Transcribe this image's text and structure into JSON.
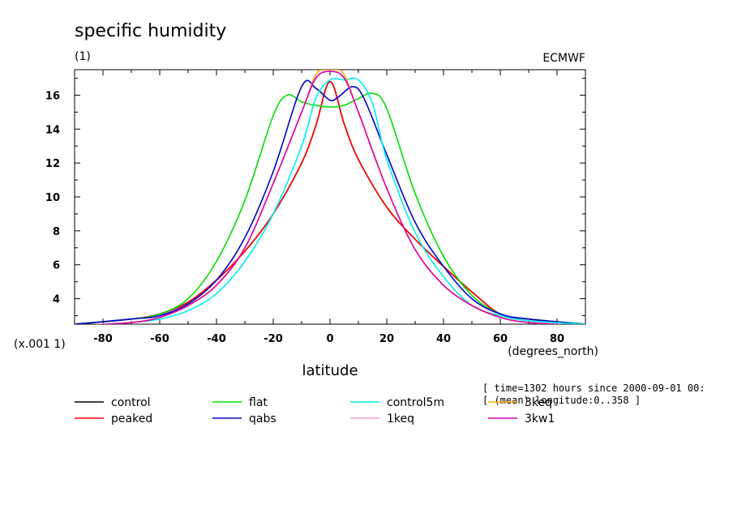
{
  "chart_data": {
    "type": "line",
    "title": "specific humidity",
    "subtitle": "(1)",
    "source_label": "ECMWF",
    "xlabel": "latitude",
    "xunit": "(degrees_north)",
    "yscale_label": "(x.001 1)",
    "xlim": [
      -90,
      90
    ],
    "ylim": [
      2.5,
      17.5
    ],
    "xticks": [
      -80,
      -60,
      -40,
      -20,
      0,
      20,
      40,
      60,
      80
    ],
    "yticks": [
      4,
      6,
      8,
      10,
      12,
      14,
      16
    ],
    "grid": false,
    "legend_placement": "bottom",
    "info_lines": [
      "[ time=1302 hours since 2000-09-01 00:",
      "[ (mean) longitude:0..358 ]"
    ],
    "series": [
      {
        "name": "control",
        "color": "#000000",
        "x": [
          -90,
          -70,
          -60,
          -50,
          -40,
          -30,
          -20,
          -10,
          -5,
          0,
          5,
          10,
          20,
          30,
          40,
          50,
          60,
          70,
          90
        ],
        "y": [
          2.5,
          2.8,
          3.1,
          3.8,
          5.1,
          6.8,
          9.0,
          12.0,
          14.2,
          16.8,
          14.3,
          12.2,
          9.4,
          7.5,
          5.9,
          4.4,
          3.1,
          2.8,
          2.5
        ]
      },
      {
        "name": "peaked",
        "color": "#ff0000",
        "x": [
          -90,
          -70,
          -60,
          -50,
          -40,
          -30,
          -20,
          -10,
          -5,
          0,
          5,
          10,
          20,
          30,
          40,
          50,
          60,
          70,
          90
        ],
        "y": [
          2.5,
          2.8,
          3.1,
          3.8,
          5.1,
          6.8,
          9.0,
          12.0,
          14.2,
          16.8,
          14.3,
          12.2,
          9.4,
          7.5,
          5.9,
          4.4,
          3.1,
          2.8,
          2.5
        ]
      },
      {
        "name": "flat",
        "color": "#00dd00",
        "x": [
          -90,
          -70,
          -60,
          -50,
          -40,
          -30,
          -20,
          -15,
          -10,
          -5,
          0,
          5,
          10,
          15,
          20,
          30,
          40,
          50,
          60,
          70,
          90
        ],
        "y": [
          2.5,
          2.8,
          3.1,
          4.0,
          6.2,
          9.8,
          14.8,
          16.0,
          15.6,
          15.4,
          15.3,
          15.4,
          15.8,
          16.1,
          15.2,
          10.2,
          6.5,
          4.2,
          3.1,
          2.8,
          2.5
        ]
      },
      {
        "name": "qabs",
        "color": "#0000cc",
        "x": [
          -90,
          -70,
          -60,
          -50,
          -40,
          -30,
          -20,
          -10,
          -5,
          0,
          3,
          8,
          12,
          20,
          30,
          40,
          50,
          60,
          70,
          90
        ],
        "y": [
          2.5,
          2.8,
          3.0,
          3.7,
          5.1,
          7.6,
          11.5,
          16.5,
          16.4,
          15.7,
          15.9,
          16.5,
          15.8,
          12.5,
          8.5,
          5.9,
          4.0,
          3.1,
          2.8,
          2.5
        ]
      },
      {
        "name": "control5m",
        "color": "#00eeee",
        "x": [
          -90,
          -70,
          -60,
          -50,
          -40,
          -30,
          -20,
          -10,
          -5,
          0,
          5,
          10,
          15,
          20,
          30,
          40,
          50,
          60,
          70,
          90
        ],
        "y": [
          2.4,
          2.6,
          2.8,
          3.3,
          4.3,
          6.2,
          9.0,
          13.0,
          15.8,
          16.9,
          16.9,
          16.9,
          15.5,
          12.2,
          7.9,
          5.3,
          3.6,
          3.0,
          2.7,
          2.5
        ]
      },
      {
        "name": "1keq",
        "color": "#ee99dd",
        "x": [
          -90,
          -70,
          -60,
          -50,
          -40,
          -30,
          -20,
          -10,
          -5,
          0,
          5,
          10,
          20,
          30,
          40,
          50,
          60,
          70,
          90
        ],
        "y": [
          2.4,
          2.6,
          2.9,
          3.6,
          4.8,
          7.0,
          10.8,
          15.0,
          17.0,
          17.4,
          17.0,
          15.0,
          10.5,
          6.9,
          4.8,
          3.6,
          2.9,
          2.6,
          2.4
        ]
      },
      {
        "name": "3keq",
        "color": "#ffaa00",
        "x": [
          -90,
          -70,
          -60,
          -50,
          -40,
          -30,
          -20,
          -10,
          -5,
          -2,
          0,
          2,
          5,
          10,
          20,
          30,
          40,
          50,
          60,
          70,
          90
        ],
        "y": [
          2.4,
          2.6,
          2.9,
          3.6,
          4.8,
          7.0,
          10.8,
          15.0,
          17.2,
          17.5,
          17.5,
          17.5,
          17.2,
          15.0,
          10.5,
          6.9,
          4.8,
          3.6,
          2.9,
          2.6,
          2.4
        ]
      },
      {
        "name": "3kw1",
        "color": "#dd00aa",
        "x": [
          -90,
          -70,
          -60,
          -50,
          -40,
          -30,
          -20,
          -10,
          -5,
          0,
          5,
          10,
          20,
          30,
          40,
          50,
          60,
          70,
          90
        ],
        "y": [
          2.4,
          2.6,
          2.9,
          3.6,
          4.8,
          7.0,
          10.8,
          15.0,
          17.0,
          17.4,
          17.0,
          15.0,
          10.5,
          6.9,
          4.8,
          3.6,
          2.9,
          2.6,
          2.4
        ]
      }
    ]
  }
}
